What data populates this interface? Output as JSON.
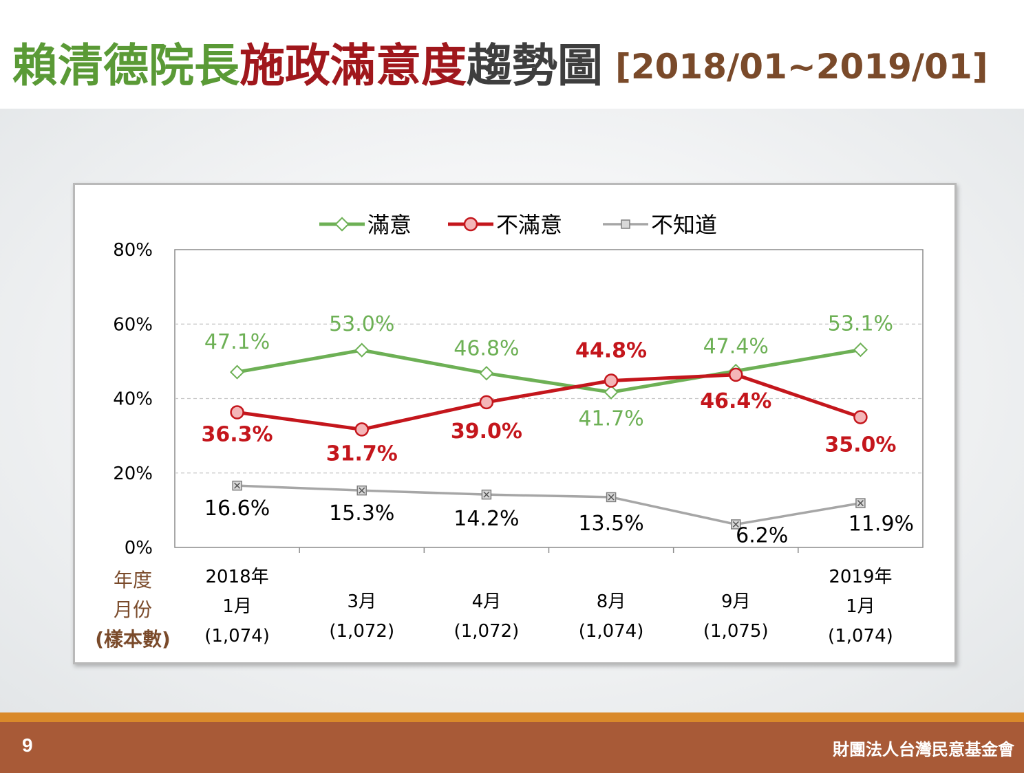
{
  "title": {
    "part1": "賴清德院長",
    "part2": "施政滿意度",
    "part3": "趨勢圖",
    "range": "[2018/01~2019/01]"
  },
  "footer": {
    "page_number": "9",
    "organization": "財團法人台灣民意基金會"
  },
  "colors": {
    "satisfied": "#6db055",
    "dissatisfied": "#c4161c",
    "unknown": "#a6a6a6",
    "axis_title": "#7a4a2a"
  },
  "chart_data": {
    "type": "line",
    "x_axis_title": [
      "年度",
      "月份",
      "(樣本數)"
    ],
    "categories": [
      [
        "2018年",
        "1月",
        "(1,074)"
      ],
      [
        "3月",
        "(1,072)"
      ],
      [
        "4月",
        "(1,072)"
      ],
      [
        "8月",
        "(1,074)"
      ],
      [
        "9月",
        "(1,075)"
      ],
      [
        "2019年",
        "1月",
        "(1,074)"
      ]
    ],
    "ylim": [
      0,
      80
    ],
    "y_ticks": [
      "0%",
      "20%",
      "40%",
      "60%",
      "80%"
    ],
    "grid": true,
    "legend_position": "top",
    "series": [
      {
        "name": "滿意",
        "values": [
          47.1,
          53.0,
          46.8,
          41.7,
          47.4,
          53.1
        ],
        "labels": [
          "47.1%",
          "53.0%",
          "46.8%",
          "41.7%",
          "47.4%",
          "53.1%"
        ]
      },
      {
        "name": "不滿意",
        "values": [
          36.3,
          31.7,
          39.0,
          44.8,
          46.4,
          35.0
        ],
        "labels": [
          "36.3%",
          "31.7%",
          "39.0%",
          "44.8%",
          "46.4%",
          "35.0%"
        ]
      },
      {
        "name": "不知道",
        "values": [
          16.6,
          15.3,
          14.2,
          13.5,
          6.2,
          11.9
        ],
        "labels": [
          "16.6%",
          "15.3%",
          "14.2%",
          "13.5%",
          "6.2%",
          "11.9%"
        ]
      }
    ]
  }
}
